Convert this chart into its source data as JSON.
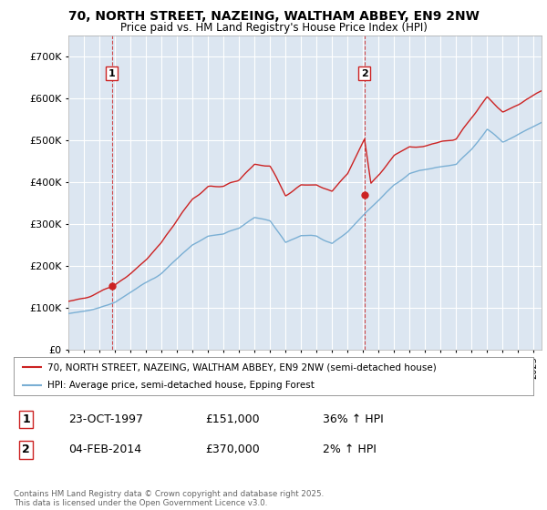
{
  "title_line1": "70, NORTH STREET, NAZEING, WALTHAM ABBEY, EN9 2NW",
  "title_line2": "Price paid vs. HM Land Registry's House Price Index (HPI)",
  "background_color": "#ffffff",
  "plot_bg_color": "#dce6f1",
  "grid_color": "#ffffff",
  "red_color": "#cc2222",
  "blue_color": "#7aafd4",
  "dashed_color": "#cc2222",
  "marker1_x": 1997.81,
  "marker1_y": 151000,
  "marker2_x": 2014.09,
  "marker2_y": 370000,
  "legend_line1": "70, NORTH STREET, NAZEING, WALTHAM ABBEY, EN9 2NW (semi-detached house)",
  "legend_line2": "HPI: Average price, semi-detached house, Epping Forest",
  "table_row1_num": "1",
  "table_row1_date": "23-OCT-1997",
  "table_row1_price": "£151,000",
  "table_row1_hpi": "36% ↑ HPI",
  "table_row2_num": "2",
  "table_row2_date": "04-FEB-2014",
  "table_row2_price": "£370,000",
  "table_row2_hpi": "2% ↑ HPI",
  "footer": "Contains HM Land Registry data © Crown copyright and database right 2025.\nThis data is licensed under the Open Government Licence v3.0.",
  "ylim_max": 750000,
  "yticks": [
    0,
    100000,
    200000,
    300000,
    400000,
    500000,
    600000,
    700000
  ],
  "xlim_min": 1995,
  "xlim_max": 2025.5
}
